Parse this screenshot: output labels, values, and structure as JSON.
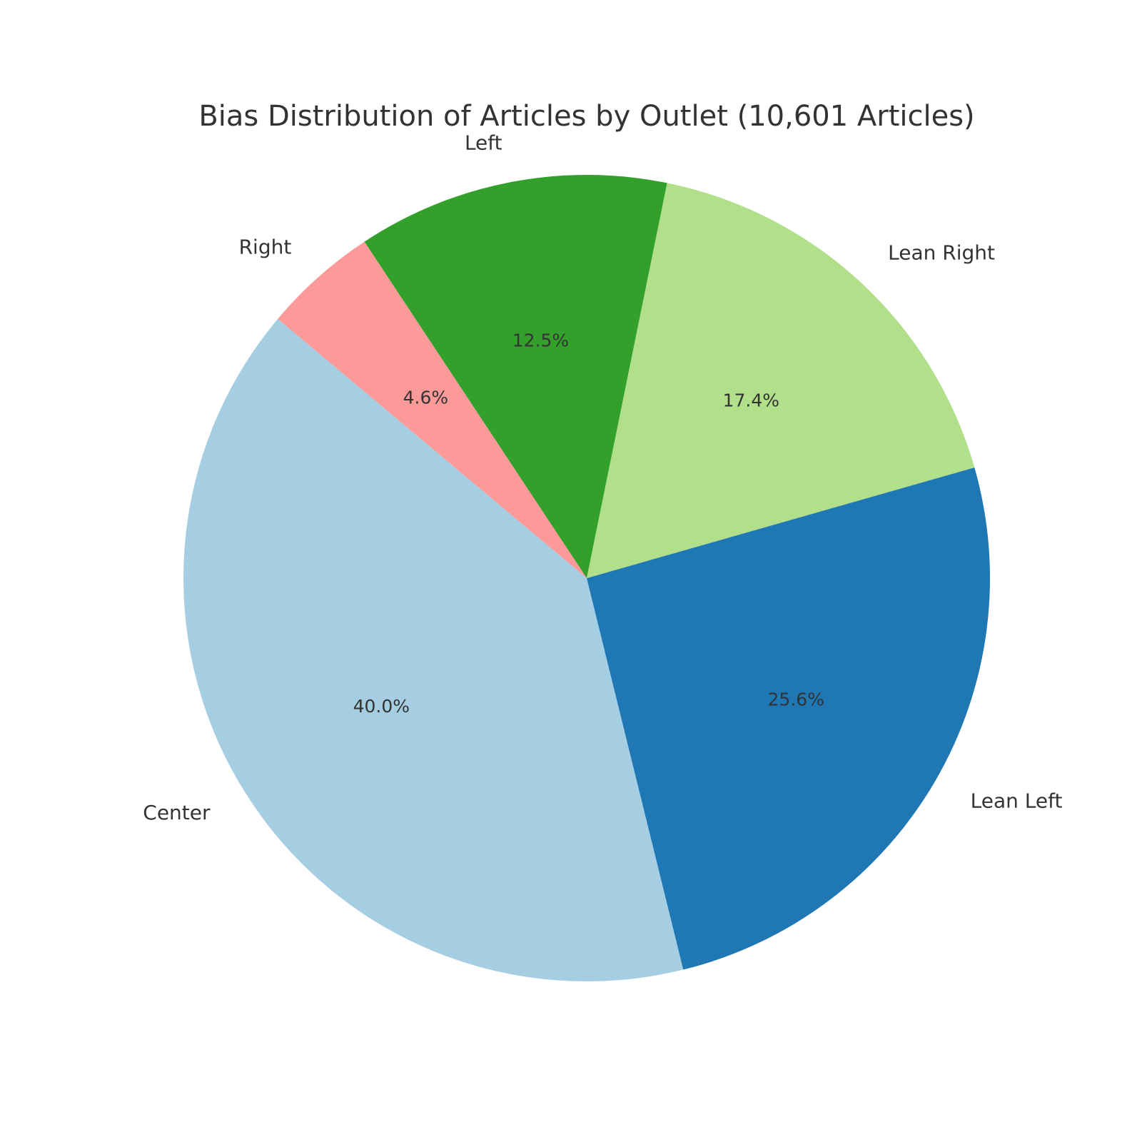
{
  "chart_data": {
    "type": "pie",
    "title": "Bias Distribution of Articles by Outlet (10,601 Articles)",
    "categories": [
      "Center",
      "Lean Left",
      "Lean Right",
      "Left",
      "Right"
    ],
    "values": [
      40.0,
      25.6,
      17.4,
      12.5,
      4.6
    ],
    "value_labels": [
      "40.0%",
      "25.6%",
      "17.4%",
      "12.5%",
      "4.6%"
    ],
    "colors": [
      "#a6cee3",
      "#1f78b4",
      "#b2df8a",
      "#33a02c",
      "#fb9a99"
    ],
    "start_angle_deg": 140,
    "direction": "counterclockwise",
    "legend": "none"
  }
}
